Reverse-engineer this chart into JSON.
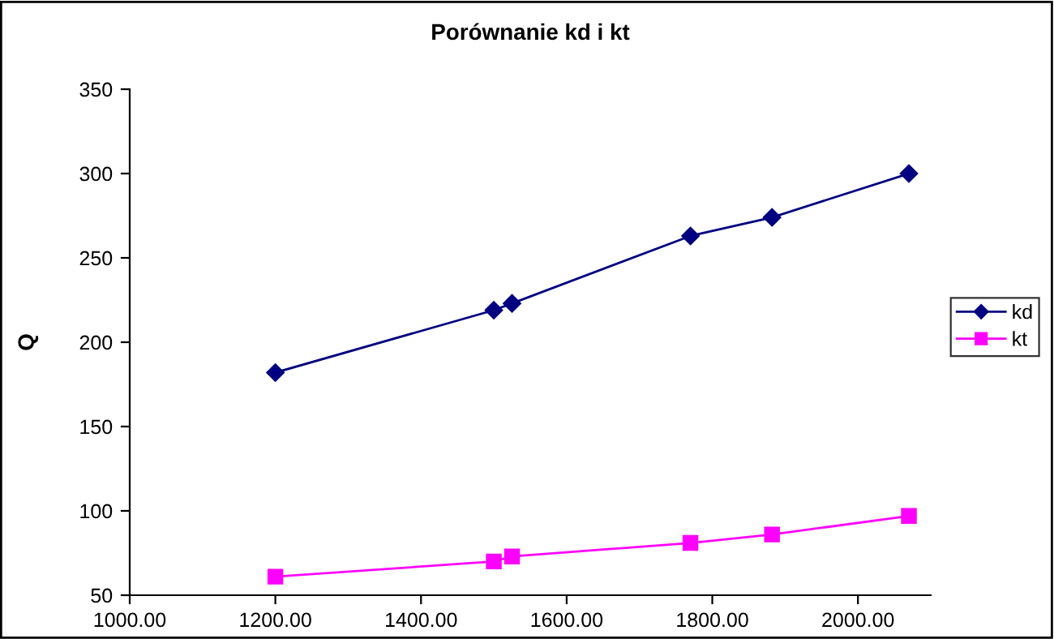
{
  "chart_data": {
    "type": "line",
    "title": "Porównanie kd i kt",
    "ylabel": "Q",
    "x": [
      1200,
      1500,
      1525,
      1770,
      1882,
      2070
    ],
    "series": [
      {
        "name": "kd",
        "color": "#000080",
        "marker": "diamond",
        "values": [
          182,
          219,
          223,
          263,
          274,
          300
        ]
      },
      {
        "name": "kt",
        "color": "#ff00ff",
        "marker": "square",
        "values": [
          61,
          70,
          73,
          81,
          86,
          97
        ]
      }
    ],
    "xlim": [
      1000,
      2100
    ],
    "xticks": [
      {
        "value": 1000,
        "label": "1000.00"
      },
      {
        "value": 1200,
        "label": "1200.00"
      },
      {
        "value": 1400,
        "label": "1400.00"
      },
      {
        "value": 1600,
        "label": "1600.00"
      },
      {
        "value": 1800,
        "label": "1800.00"
      },
      {
        "value": 2000,
        "label": "2000.00"
      }
    ],
    "ylim": [
      50,
      350
    ],
    "yticks": [
      50,
      100,
      150,
      200,
      250,
      300,
      350
    ],
    "grid": false,
    "legend": "right",
    "line_style": "solid"
  }
}
